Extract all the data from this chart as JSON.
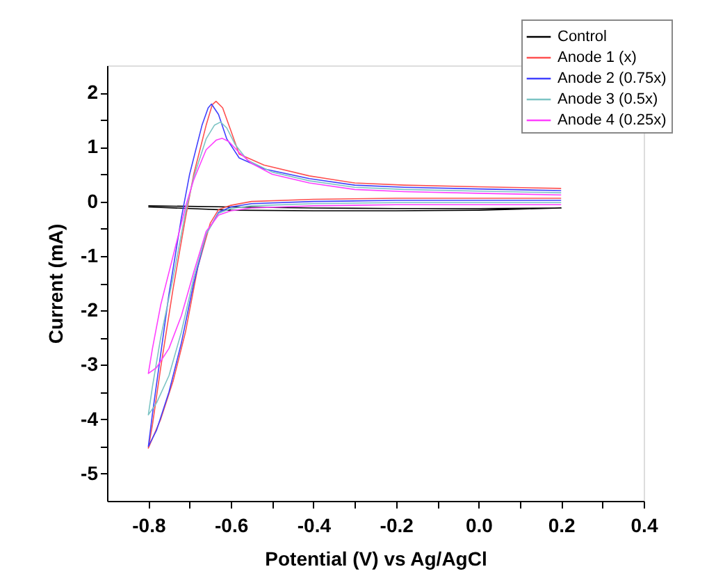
{
  "chart_data": {
    "type": "line",
    "xlabel": "Potential (V) vs Ag/AgCl",
    "ylabel": "Current (mA)",
    "xlim": [
      -0.9,
      0.4
    ],
    "ylim": [
      -5.5,
      2.5
    ],
    "xticks": [
      -0.8,
      {
        "value": -0.7,
        "label": null
      },
      -0.6,
      {
        "value": -0.5,
        "label": null
      },
      -0.4,
      {
        "value": -0.3,
        "label": null
      },
      -0.2,
      {
        "value": -0.1,
        "label": null
      },
      {
        "value": 0,
        "label": "0.0"
      },
      {
        "value": 0.1,
        "label": null
      },
      0.2,
      {
        "value": 0.3,
        "label": null
      },
      0.4
    ],
    "yticks": [
      -5,
      {
        "value": -4.5,
        "label": null
      },
      -4,
      {
        "value": -3.5,
        "label": null
      },
      -3,
      {
        "value": -2.5,
        "label": null
      },
      -2,
      {
        "value": -1.5,
        "label": null
      },
      -1,
      {
        "value": -0.5,
        "label": null
      },
      0,
      {
        "value": 0.5,
        "label": null
      },
      1,
      {
        "value": 1.5,
        "label": null
      },
      2
    ],
    "grid": false,
    "legend": "top right",
    "marker": "none",
    "line_style": "solid",
    "series": [
      {
        "name": "Control",
        "color": "#000000",
        "x": [
          -0.8,
          -0.6,
          -0.4,
          -0.2,
          0.0,
          0.2,
          0.0,
          -0.2,
          -0.4,
          -0.6,
          -0.8
        ],
        "values": [
          -0.08,
          -0.1,
          -0.12,
          -0.13,
          -0.13,
          -0.12,
          -0.16,
          -0.17,
          -0.17,
          -0.16,
          -0.1
        ]
      },
      {
        "name": "Anode 1 (x)",
        "color": "#ff5050",
        "x": [
          0.2,
          0.0,
          -0.2,
          -0.4,
          -0.55,
          -0.6,
          -0.63,
          -0.65,
          -0.68,
          -0.71,
          -0.74,
          -0.77,
          -0.8,
          -0.79,
          -0.77,
          -0.74,
          -0.71,
          -0.69,
          -0.66,
          -0.645,
          -0.636,
          -0.62,
          -0.6,
          -0.58,
          -0.52,
          -0.41,
          -0.3,
          -0.18,
          0.0,
          0.2
        ],
        "values": [
          0.06,
          0.06,
          0.06,
          0.04,
          0.0,
          -0.07,
          -0.15,
          -0.4,
          -1.2,
          -2.4,
          -3.3,
          -4.0,
          -4.53,
          -4.1,
          -3.05,
          -1.6,
          -0.3,
          0.5,
          1.4,
          1.78,
          1.84,
          1.72,
          1.3,
          0.87,
          0.67,
          0.47,
          0.34,
          0.3,
          0.27,
          0.24
        ]
      },
      {
        "name": "Anode 2 (0.75x)",
        "color": "#4040ff",
        "x": [
          0.2,
          0.0,
          -0.2,
          -0.4,
          -0.55,
          -0.6,
          -0.63,
          -0.66,
          -0.69,
          -0.72,
          -0.75,
          -0.78,
          -0.8,
          -0.79,
          -0.77,
          -0.75,
          -0.72,
          -0.7,
          -0.67,
          -0.655,
          -0.647,
          -0.63,
          -0.61,
          -0.58,
          -0.52,
          -0.41,
          -0.3,
          -0.18,
          0.0,
          0.2
        ],
        "values": [
          0.02,
          0.02,
          0.02,
          0.0,
          -0.04,
          -0.1,
          -0.2,
          -0.6,
          -1.5,
          -2.6,
          -3.5,
          -4.2,
          -4.5,
          -3.9,
          -2.8,
          -1.7,
          -0.3,
          0.5,
          1.4,
          1.72,
          1.79,
          1.6,
          1.15,
          0.8,
          0.6,
          0.42,
          0.3,
          0.26,
          0.23,
          0.2
        ]
      },
      {
        "name": "Anode 3 (0.5x)",
        "color": "#7cc4c4",
        "x": [
          0.2,
          0.0,
          -0.2,
          -0.4,
          -0.55,
          -0.6,
          -0.63,
          -0.66,
          -0.69,
          -0.72,
          -0.75,
          -0.78,
          -0.8,
          -0.79,
          -0.77,
          -0.74,
          -0.71,
          -0.69,
          -0.66,
          -0.64,
          -0.625,
          -0.61,
          -0.59,
          -0.56,
          -0.5,
          -0.41,
          -0.3,
          -0.18,
          0.0,
          0.2
        ],
        "values": [
          -0.02,
          -0.02,
          -0.02,
          -0.04,
          -0.08,
          -0.13,
          -0.22,
          -0.6,
          -1.4,
          -2.4,
          -3.2,
          -3.7,
          -3.92,
          -3.4,
          -2.5,
          -1.4,
          -0.2,
          0.45,
          1.15,
          1.4,
          1.46,
          1.35,
          1.05,
          0.76,
          0.54,
          0.38,
          0.26,
          0.22,
          0.19,
          0.16
        ]
      },
      {
        "name": "Anode 4 (0.25x)",
        "color": "#ff40ff",
        "x": [
          0.2,
          0.0,
          -0.2,
          -0.4,
          -0.55,
          -0.6,
          -0.63,
          -0.66,
          -0.69,
          -0.72,
          -0.75,
          -0.78,
          -0.8,
          -0.79,
          -0.77,
          -0.74,
          -0.71,
          -0.69,
          -0.66,
          -0.635,
          -0.621,
          -0.605,
          -0.58,
          -0.55,
          -0.5,
          -0.41,
          -0.3,
          -0.18,
          0.0,
          0.2
        ],
        "values": [
          -0.06,
          -0.06,
          -0.06,
          -0.08,
          -0.12,
          -0.17,
          -0.25,
          -0.55,
          -1.3,
          -2.1,
          -2.7,
          -3.05,
          -3.16,
          -2.7,
          -1.9,
          -1.0,
          -0.1,
          0.4,
          0.95,
          1.13,
          1.16,
          1.1,
          0.9,
          0.7,
          0.5,
          0.34,
          0.22,
          0.18,
          0.15,
          0.12
        ]
      }
    ]
  }
}
